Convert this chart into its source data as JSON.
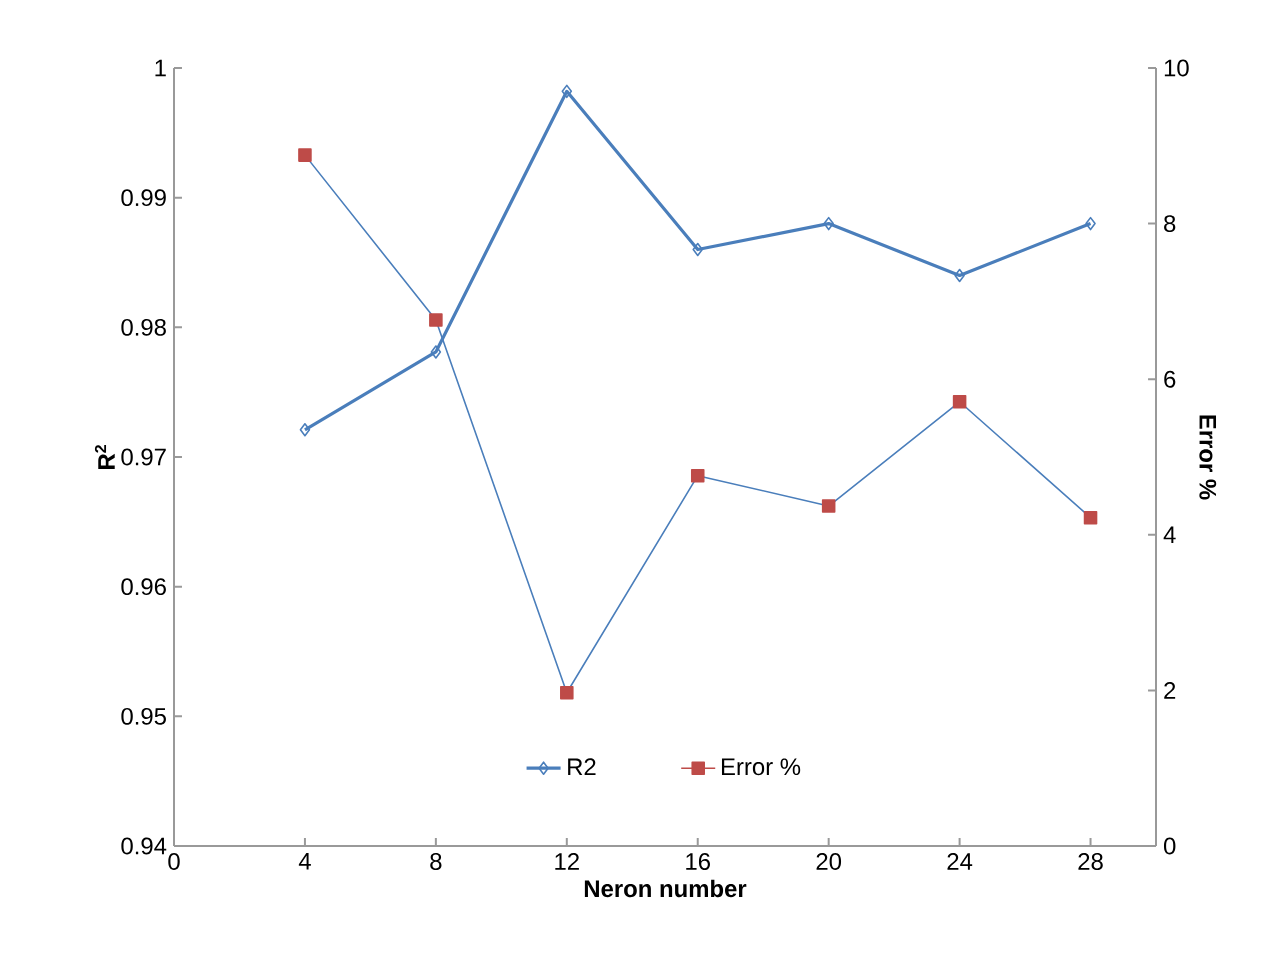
{
  "chart_data": {
    "type": "line",
    "xlabel": "Neron number",
    "ylabel": "R$^{2}$",
    "y2label": "Error %",
    "x": [
      4,
      8,
      12,
      16,
      20,
      24,
      28
    ],
    "series": [
      {
        "name": "R2",
        "color": "#4a7ebb",
        "marker": "diamond",
        "values": [
          0.9721,
          0.9781,
          0.9982,
          0.986,
          0.988,
          0.984,
          0.988
        ]
      },
      {
        "name": "Error %",
        "color": "#4a7ebb",
        "colors": [
          "#be4b48",
          "#be4b48",
          "#be4b48",
          "#be4b48",
          "#be4b48",
          "#be4b48",
          "#be4b48"
        ],
        "marker": "square",
        "axis": "y2",
        "values": [
          8.88,
          6.76,
          1.97,
          4.76,
          4.37,
          5.71,
          4.22
        ]
      }
    ],
    "xlim": [
      0,
      30
    ],
    "xticks": [
      0,
      4,
      8,
      12,
      16,
      20,
      24,
      28
    ],
    "ylim": [
      0.94,
      1
    ],
    "yticks": [
      0.94,
      0.95,
      0.96,
      0.97,
      0.98,
      0.99,
      1
    ],
    "y2lim": [
      0,
      10
    ],
    "y2ticks": [
      0,
      2,
      4,
      6,
      8,
      10
    ],
    "legend": "bottom",
    "grid": false
  }
}
